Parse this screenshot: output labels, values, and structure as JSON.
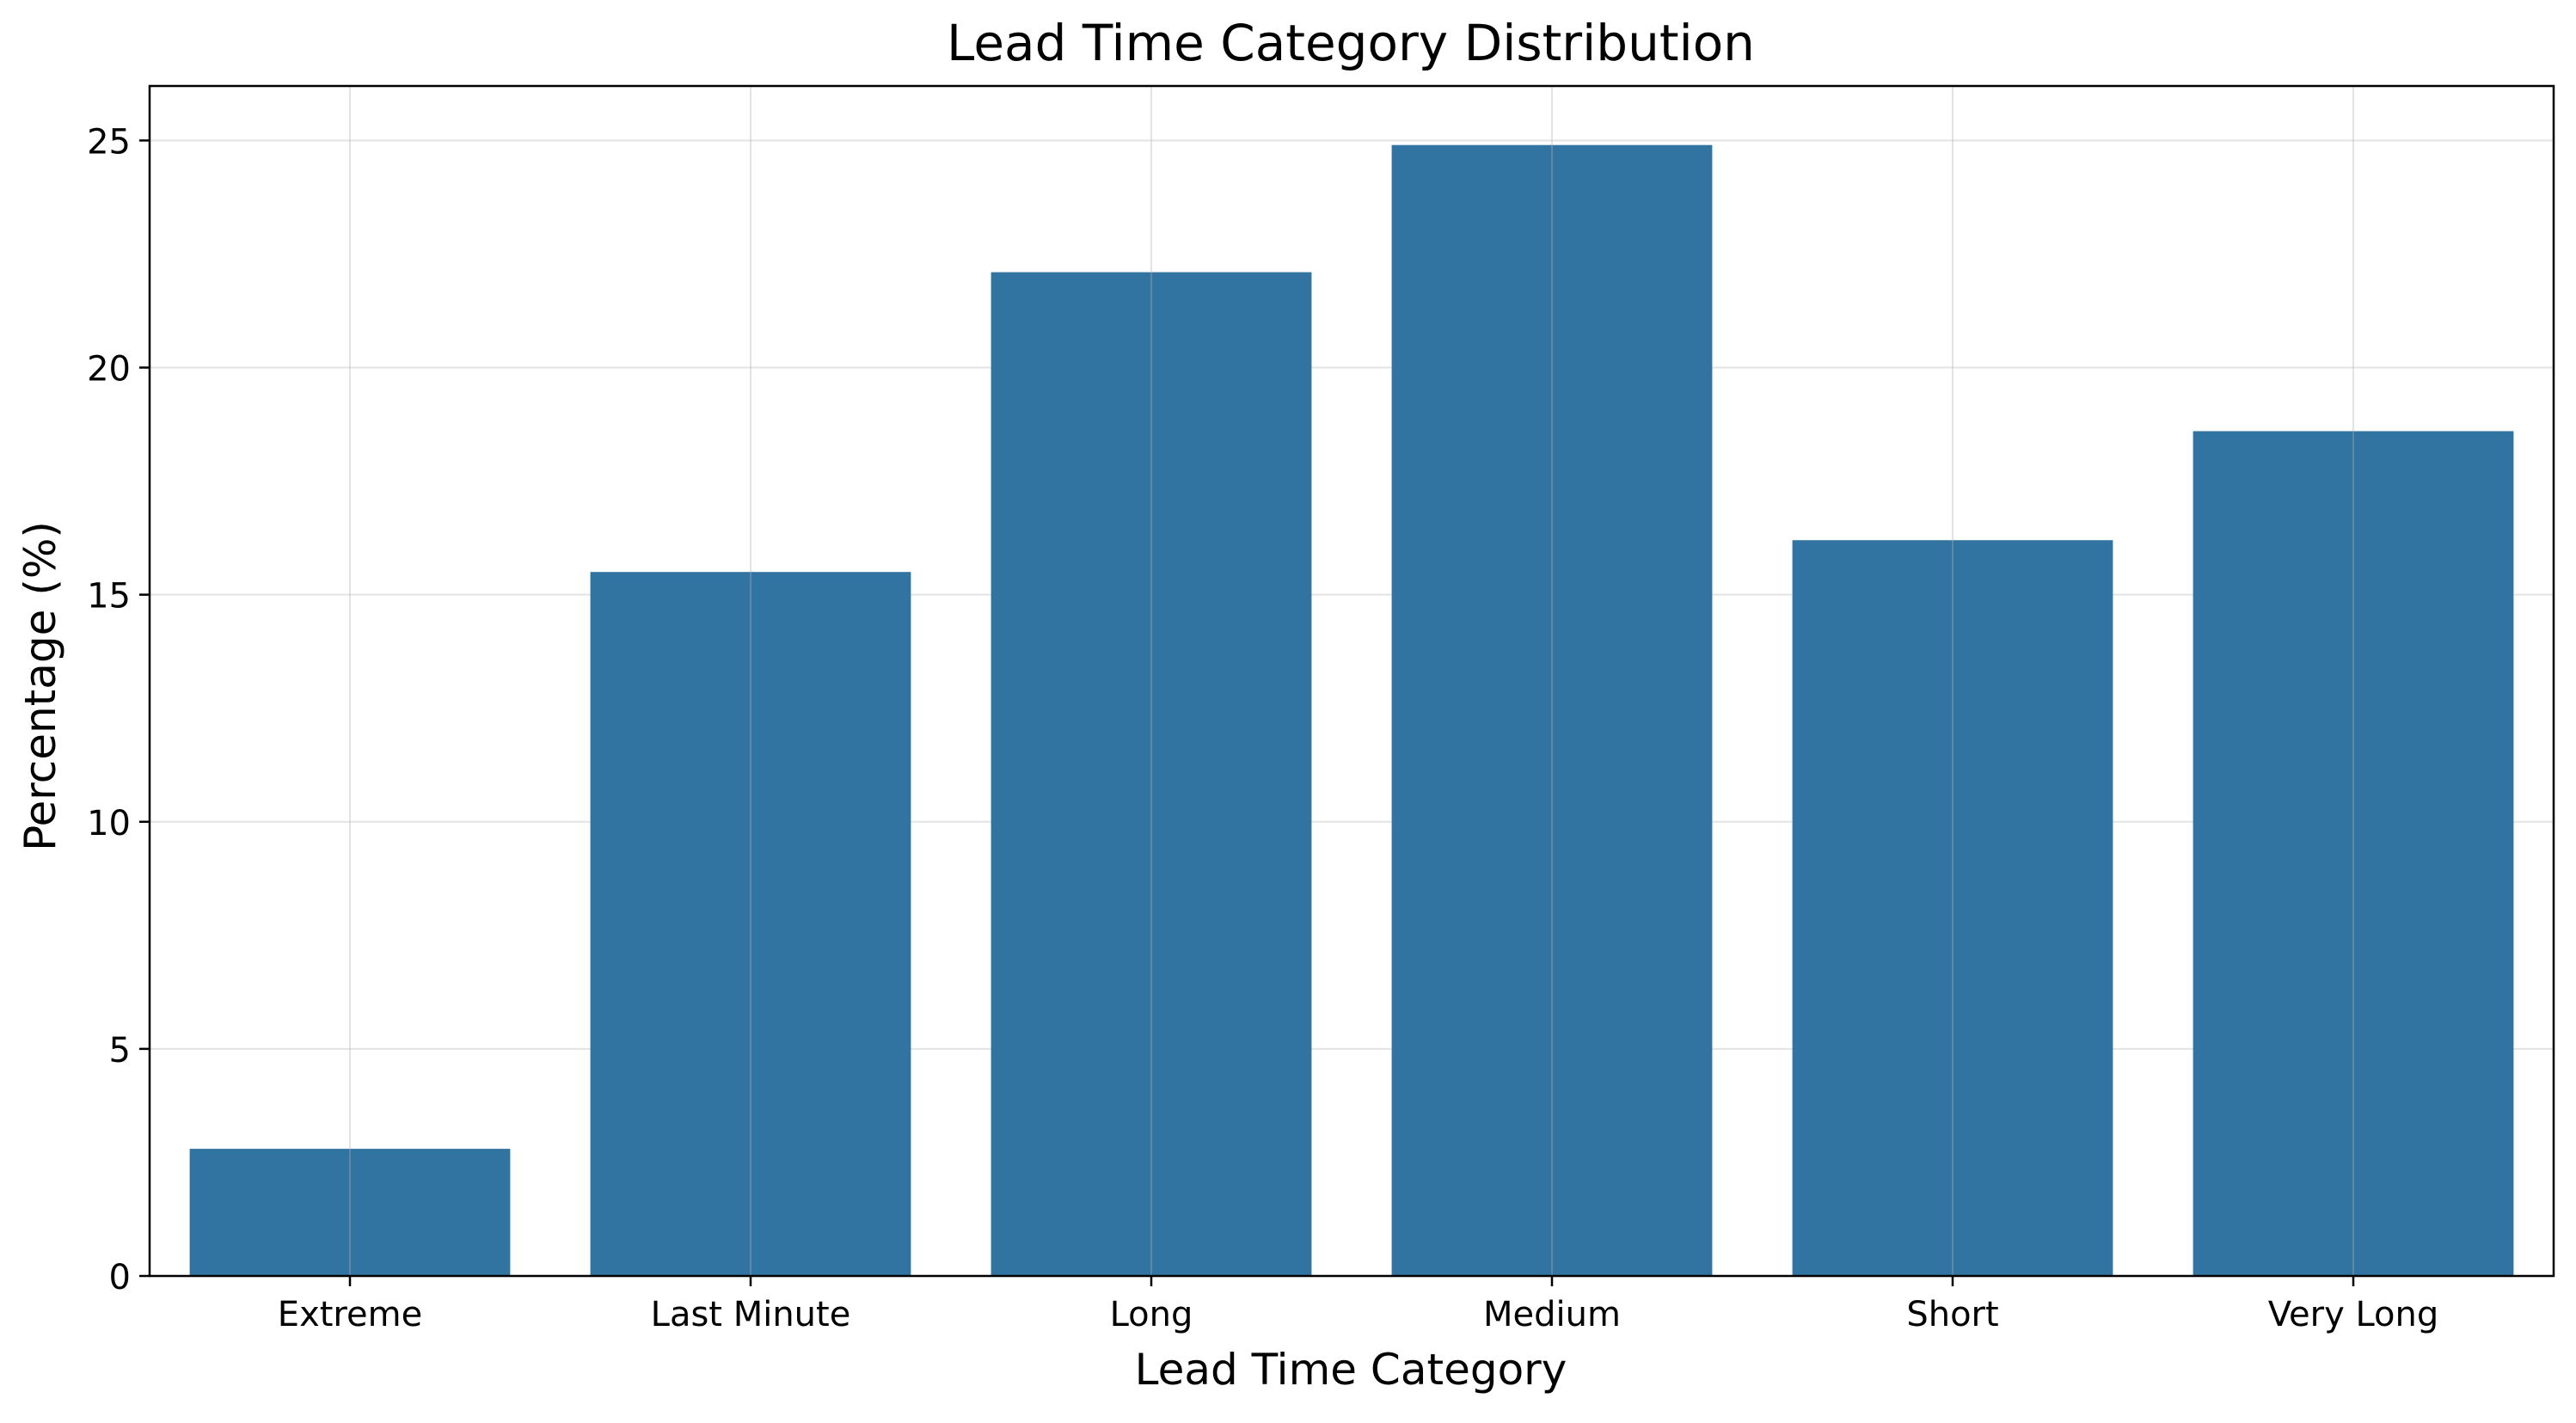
{
  "chart_data": {
    "type": "bar",
    "title": "Lead Time Category Distribution",
    "xlabel": "Lead Time Category",
    "ylabel": "Percentage (%)",
    "categories": [
      "Extreme",
      "Last Minute",
      "Long",
      "Medium",
      "Short",
      "Very Long"
    ],
    "values": [
      2.8,
      15.5,
      22.1,
      24.9,
      16.2,
      18.6
    ],
    "ylim": [
      0,
      26.2
    ],
    "yticks": [
      0,
      5,
      10,
      15,
      20,
      25
    ],
    "ytick_labels": [
      "0",
      "5",
      "10",
      "15",
      "20",
      "25"
    ],
    "grid": true,
    "legend": "none",
    "colors": {
      "bar": "#3274a1",
      "grid": "#b0b0b0",
      "axis": "#000000"
    }
  }
}
